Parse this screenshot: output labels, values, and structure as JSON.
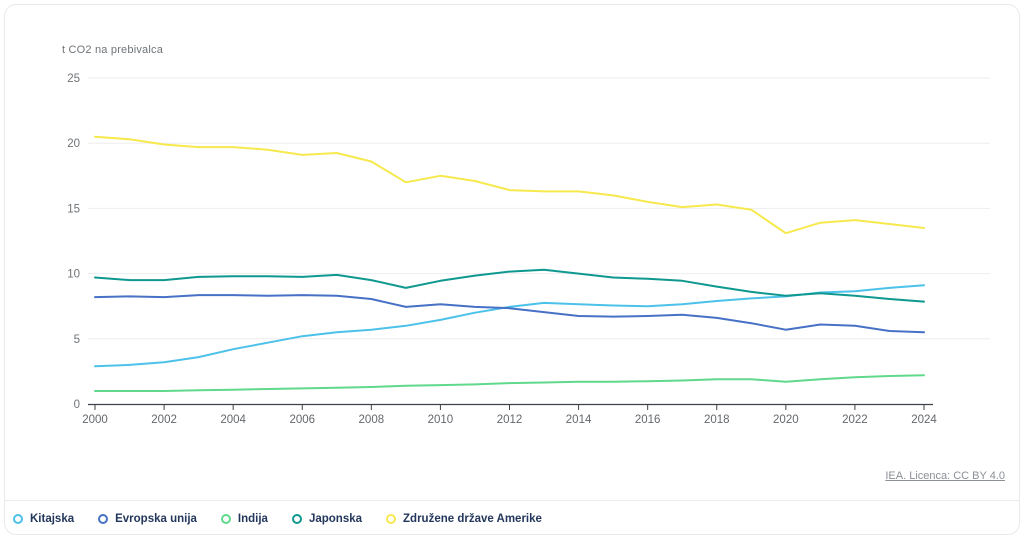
{
  "page": {
    "y_axis_title": "t CO2 na prebivalca",
    "attribution_link": "IEA. Licenca: CC BY 4.0"
  },
  "chart_data": {
    "type": "line",
    "title": "",
    "xlabel": "",
    "ylabel": "t CO2 na prebivalca",
    "ylim": [
      0,
      25
    ],
    "yticks": [
      0,
      5,
      10,
      15,
      20,
      25
    ],
    "xticks": [
      2000,
      2002,
      2004,
      2006,
      2008,
      2010,
      2012,
      2014,
      2016,
      2018,
      2020,
      2022,
      2024
    ],
    "grid": true,
    "legend_position": "bottom",
    "x": [
      2000,
      2001,
      2002,
      2003,
      2004,
      2005,
      2006,
      2007,
      2008,
      2009,
      2010,
      2011,
      2012,
      2013,
      2014,
      2015,
      2016,
      2017,
      2018,
      2019,
      2020,
      2021,
      2022,
      2023,
      2024
    ],
    "series": [
      {
        "name": "Kitajska",
        "color": "#4cc1e9",
        "values": [
          2.9,
          3.0,
          3.2,
          3.6,
          4.2,
          4.7,
          5.2,
          5.5,
          5.7,
          6.0,
          6.45,
          7.0,
          7.45,
          7.75,
          7.65,
          7.55,
          7.5,
          7.65,
          7.9,
          8.1,
          8.25,
          8.55,
          8.65,
          8.9,
          9.1
        ]
      },
      {
        "name": "Evropska unija",
        "color": "#4671c6",
        "values": [
          8.2,
          8.25,
          8.2,
          8.35,
          8.35,
          8.3,
          8.35,
          8.3,
          8.05,
          7.45,
          7.65,
          7.45,
          7.35,
          7.05,
          6.75,
          6.7,
          6.75,
          6.85,
          6.6,
          6.2,
          5.7,
          6.1,
          6.0,
          5.6,
          5.5
        ]
      },
      {
        "name": "Indija",
        "color": "#60d98c",
        "values": [
          1.0,
          1.0,
          1.0,
          1.05,
          1.1,
          1.15,
          1.2,
          1.25,
          1.3,
          1.4,
          1.45,
          1.5,
          1.6,
          1.65,
          1.7,
          1.7,
          1.75,
          1.8,
          1.9,
          1.9,
          1.7,
          1.9,
          2.05,
          2.15,
          2.2
        ]
      },
      {
        "name": "Japonska",
        "color": "#0e988f",
        "values": [
          9.7,
          9.5,
          9.5,
          9.75,
          9.8,
          9.8,
          9.75,
          9.9,
          9.5,
          8.9,
          9.45,
          9.85,
          10.15,
          10.3,
          10.0,
          9.7,
          9.6,
          9.45,
          9.0,
          8.6,
          8.3,
          8.5,
          8.3,
          8.05,
          7.85
        ]
      },
      {
        "name": "Združene države Amerike",
        "color": "#f6e94d",
        "values": [
          20.5,
          20.3,
          19.9,
          19.7,
          19.7,
          19.5,
          19.1,
          19.25,
          18.6,
          17.0,
          17.5,
          17.1,
          16.4,
          16.3,
          16.3,
          16.0,
          15.5,
          15.1,
          15.3,
          14.9,
          13.1,
          13.9,
          14.1,
          13.8,
          13.5
        ]
      }
    ]
  }
}
